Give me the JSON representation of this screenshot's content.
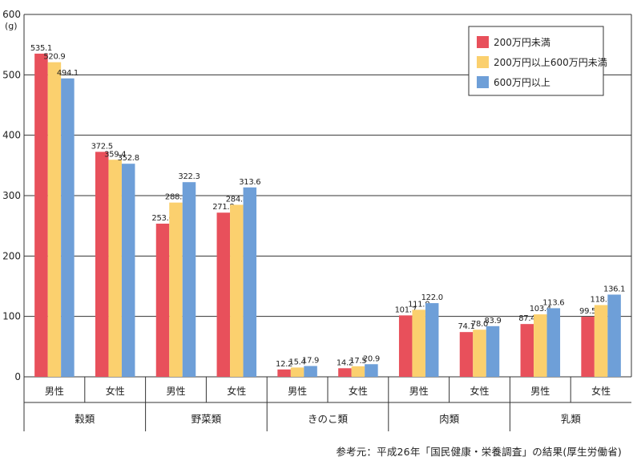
{
  "chart_data": {
    "type": "bar",
    "unit_label": "(g)",
    "ylim": [
      0,
      600
    ],
    "yticks": [
      0,
      100,
      200,
      300,
      400,
      500,
      600
    ],
    "grid": true,
    "legend_position": "top-right",
    "groups": [
      {
        "label": "穀類",
        "subs": [
          "男性",
          "女性"
        ]
      },
      {
        "label": "野菜類",
        "subs": [
          "男性",
          "女性"
        ]
      },
      {
        "label": "きのこ類",
        "subs": [
          "男性",
          "女性"
        ]
      },
      {
        "label": "肉類",
        "subs": [
          "男性",
          "女性"
        ]
      },
      {
        "label": "乳類",
        "subs": [
          "男性",
          "女性"
        ]
      }
    ],
    "series": [
      {
        "name": "200万円未満",
        "color": "#e8505b",
        "values": [
          535.1,
          372.5,
          253.6,
          271.8,
          12.2,
          14.2,
          101.7,
          74.1,
          87.4,
          99.5
        ]
      },
      {
        "name": "200万円以上600万円未満",
        "color": "#fbd06e",
        "values": [
          520.9,
          359.4,
          288.5,
          284.8,
          15.4,
          17.5,
          111.0,
          78.0,
          103.4,
          118.8
        ]
      },
      {
        "name": "600万円以上",
        "color": "#6e9fd8",
        "values": [
          494.1,
          352.8,
          322.3,
          313.6,
          17.9,
          20.9,
          122.0,
          83.9,
          113.6,
          136.1
        ]
      }
    ]
  },
  "source_note": "参考元：平成26年「国民健康・栄養調査」の結果(厚生労働省)"
}
